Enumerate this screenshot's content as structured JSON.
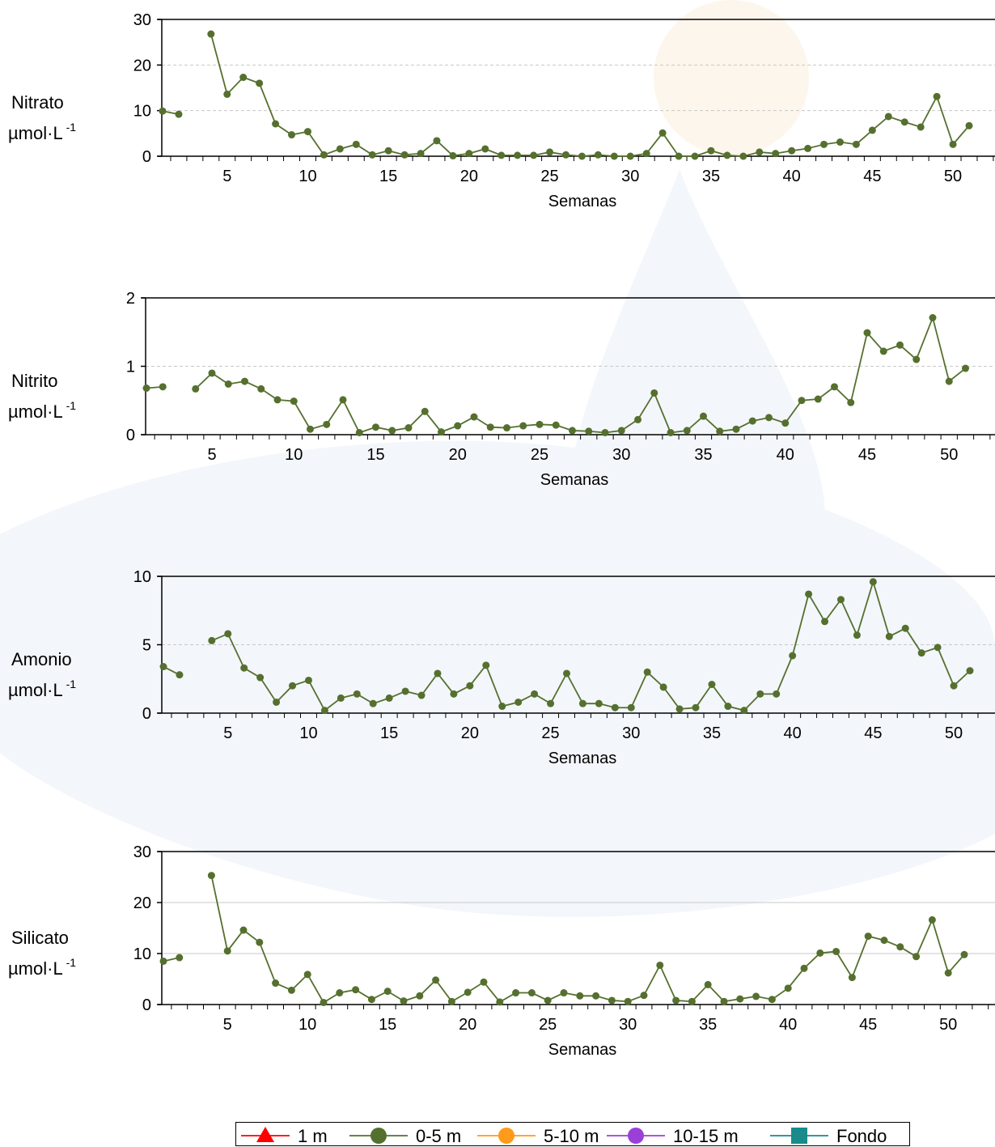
{
  "colors": {
    "series": "#55702e",
    "axis": "#000000",
    "grid": "#c8c8c8",
    "watermark_blue": "#f3f6fb",
    "watermark_sun": "#fdf6ec"
  },
  "chart_data": [
    {
      "type": "line",
      "name": "Nitrato",
      "ylabel_line1": "Nitrato",
      "ylabel_line2": "µmol·L",
      "ylabel_sup": "-1",
      "xlabel": "Semanas",
      "ylim": [
        0,
        30
      ],
      "yticks": [
        0,
        10,
        20,
        30
      ],
      "xticks": [
        5,
        10,
        15,
        20,
        25,
        30,
        35,
        40,
        45,
        50
      ],
      "grid": true,
      "series": [
        {
          "name": "0-5 m",
          "x": [
            1,
            2,
            4,
            5,
            6,
            7,
            8,
            9,
            10,
            11,
            12,
            13,
            14,
            15,
            16,
            17,
            18,
            19,
            20,
            21,
            22,
            23,
            24,
            25,
            26,
            27,
            28,
            29,
            30,
            31,
            32,
            33,
            34,
            35,
            36,
            37,
            38,
            39,
            40,
            41,
            42,
            43,
            44,
            45,
            46,
            47,
            48,
            49,
            50,
            51
          ],
          "y": [
            9.9,
            9.2,
            26.8,
            13.6,
            17.3,
            16.0,
            7.1,
            4.7,
            5.4,
            0.3,
            1.6,
            2.6,
            0.3,
            1.2,
            0.3,
            0.6,
            3.4,
            0.1,
            0.6,
            1.6,
            0.2,
            0.2,
            0.2,
            0.9,
            0.3,
            0.0,
            0.3,
            0.0,
            0.0,
            0.6,
            5.1,
            0.0,
            0.0,
            1.2,
            0.2,
            0.0,
            0.9,
            0.6,
            1.2,
            1.7,
            2.6,
            3.1,
            2.6,
            5.7,
            8.7,
            7.5,
            6.4,
            13.1,
            2.6,
            6.7
          ]
        }
      ]
    },
    {
      "type": "line",
      "name": "Nitrito",
      "ylabel_line1": "Nitrito",
      "ylabel_line2": "µmol·L",
      "ylabel_sup": "-1",
      "xlabel": "Semanas",
      "ylim": [
        0,
        2
      ],
      "yticks": [
        0,
        1,
        2
      ],
      "xticks": [
        5,
        10,
        15,
        20,
        25,
        30,
        35,
        40,
        45,
        50
      ],
      "grid": true,
      "series": [
        {
          "name": "0-5 m",
          "x": [
            1,
            2,
            4,
            5,
            6,
            7,
            8,
            9,
            10,
            11,
            12,
            13,
            14,
            15,
            16,
            17,
            18,
            19,
            20,
            21,
            22,
            23,
            24,
            25,
            26,
            27,
            28,
            29,
            30,
            31,
            32,
            33,
            34,
            35,
            36,
            37,
            38,
            39,
            40,
            41,
            42,
            43,
            44,
            45,
            46,
            47,
            48,
            49,
            50,
            51
          ],
          "y": [
            0.68,
            0.7,
            0.67,
            0.9,
            0.74,
            0.78,
            0.67,
            0.51,
            0.49,
            0.08,
            0.15,
            0.51,
            0.03,
            0.11,
            0.06,
            0.1,
            0.34,
            0.04,
            0.13,
            0.26,
            0.11,
            0.1,
            0.13,
            0.15,
            0.14,
            0.06,
            0.05,
            0.03,
            0.06,
            0.22,
            0.61,
            0.03,
            0.06,
            0.27,
            0.05,
            0.08,
            0.2,
            0.25,
            0.17,
            0.5,
            0.52,
            0.7,
            0.47,
            1.49,
            1.22,
            1.31,
            1.1,
            1.71,
            0.78,
            0.97
          ]
        }
      ]
    },
    {
      "type": "line",
      "name": "Amonio",
      "ylabel_line1": "Amonio",
      "ylabel_line2": "µmol·L",
      "ylabel_sup": "-1",
      "xlabel": "Semanas",
      "ylim": [
        0,
        10
      ],
      "yticks": [
        0,
        5,
        10
      ],
      "xticks": [
        5,
        10,
        15,
        20,
        25,
        30,
        35,
        40,
        45,
        50
      ],
      "grid": true,
      "series": [
        {
          "name": "0-5 m",
          "x": [
            1,
            2,
            4,
            5,
            6,
            7,
            8,
            9,
            10,
            11,
            12,
            13,
            14,
            15,
            16,
            17,
            18,
            19,
            20,
            21,
            22,
            23,
            24,
            25,
            26,
            27,
            28,
            29,
            30,
            31,
            32,
            33,
            34,
            35,
            36,
            37,
            38,
            39,
            40,
            41,
            42,
            43,
            44,
            45,
            46,
            47,
            48,
            49,
            50,
            51
          ],
          "y": [
            3.4,
            2.8,
            5.3,
            5.8,
            3.3,
            2.6,
            0.8,
            2.0,
            2.4,
            0.2,
            1.1,
            1.4,
            0.7,
            1.1,
            1.6,
            1.3,
            2.9,
            1.4,
            2.0,
            3.5,
            0.5,
            0.8,
            1.4,
            0.7,
            2.9,
            0.7,
            0.7,
            0.4,
            0.4,
            3.0,
            1.9,
            0.3,
            0.4,
            2.1,
            0.5,
            0.2,
            1.4,
            1.4,
            4.2,
            8.7,
            6.7,
            8.3,
            5.7,
            9.6,
            5.6,
            6.2,
            4.4,
            4.8,
            2.0,
            3.1
          ]
        }
      ]
    },
    {
      "type": "line",
      "name": "Silicato",
      "ylabel_line1": "Silicato",
      "ylabel_line2": "µmol·L",
      "ylabel_sup": "-1",
      "xlabel": "Semanas",
      "ylim": [
        0,
        30
      ],
      "yticks": [
        0,
        10,
        20,
        30
      ],
      "xticks": [
        5,
        10,
        15,
        20,
        25,
        30,
        35,
        40,
        45,
        50
      ],
      "grid": true,
      "series": [
        {
          "name": "0-5 m",
          "x": [
            1,
            2,
            4,
            5,
            6,
            7,
            8,
            9,
            10,
            11,
            12,
            13,
            14,
            15,
            16,
            17,
            18,
            19,
            20,
            21,
            22,
            23,
            24,
            25,
            26,
            27,
            28,
            29,
            30,
            31,
            32,
            33,
            34,
            35,
            36,
            37,
            38,
            39,
            40,
            41,
            42,
            43,
            44,
            45,
            46,
            47,
            48,
            49,
            50,
            51
          ],
          "y": [
            8.5,
            9.2,
            25.3,
            10.5,
            14.6,
            12.2,
            4.2,
            2.8,
            5.9,
            0.4,
            2.3,
            2.9,
            1.0,
            2.6,
            0.7,
            1.7,
            4.8,
            0.6,
            2.4,
            4.4,
            0.5,
            2.3,
            2.3,
            0.8,
            2.3,
            1.7,
            1.7,
            0.8,
            0.6,
            1.8,
            7.7,
            0.8,
            0.6,
            3.9,
            0.6,
            1.1,
            1.6,
            1.0,
            3.2,
            7.1,
            10.1,
            10.4,
            5.3,
            13.4,
            12.6,
            11.3,
            9.4,
            16.6,
            6.2,
            9.8
          ]
        }
      ]
    }
  ],
  "legend": {
    "items": [
      {
        "label": "1 m",
        "color": "#ff0000",
        "marker": "triangle"
      },
      {
        "label": "0-5 m",
        "color": "#55702e",
        "marker": "circle"
      },
      {
        "label": "5-10 m",
        "color": "#ff9a1a",
        "marker": "circle"
      },
      {
        "label": "10-15 m",
        "color": "#9b3fd9",
        "marker": "circle"
      },
      {
        "label": "Fondo",
        "color": "#1a8a8a",
        "marker": "square"
      }
    ]
  }
}
